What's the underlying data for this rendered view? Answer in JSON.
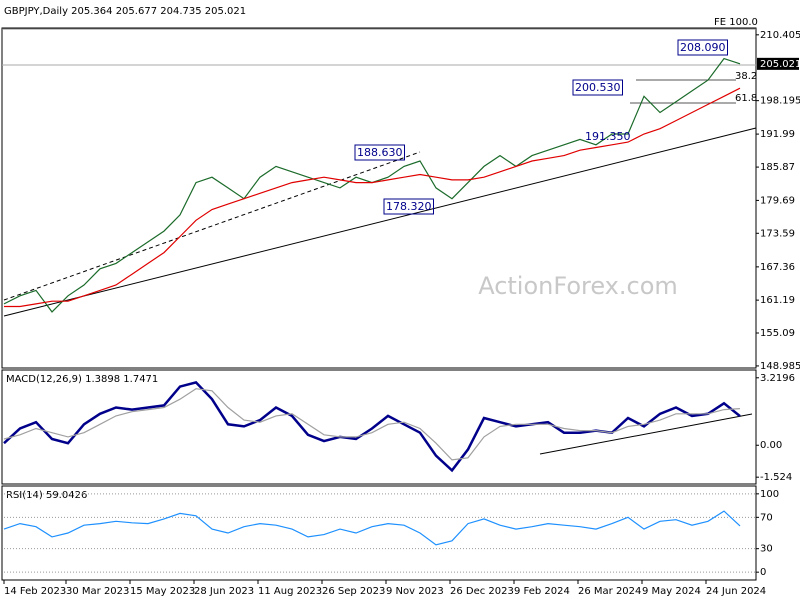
{
  "chart_data": [
    {
      "type": "line",
      "title": "GBPJPY,Daily  205.364 205.677 204.735 205.021",
      "x": [
        0,
        8,
        16,
        24,
        32,
        40,
        48,
        56,
        64,
        72,
        80,
        88,
        96,
        104,
        112,
        120,
        128,
        136,
        144,
        152,
        160,
        168,
        176,
        184,
        192,
        200,
        208,
        216,
        224,
        232,
        240,
        248,
        256,
        264,
        272,
        280,
        288,
        296,
        304,
        312,
        320,
        328,
        336,
        344,
        352,
        360,
        368
      ],
      "xlim": [
        0,
        376
      ],
      "ylim": [
        148.6,
        211.3
      ],
      "yticks": [
        148.985,
        155.09,
        161.19,
        167.36,
        173.59,
        179.69,
        185.87,
        191.99,
        198.195,
        210.405
      ],
      "last_price": 205.021,
      "series": [
        {
          "color": "#1b6b2a",
          "values": [
            160.5,
            162,
            163,
            159,
            162,
            164,
            167,
            168,
            170,
            172,
            174,
            177,
            183,
            184,
            182,
            180,
            184,
            186,
            185,
            184,
            183,
            182,
            184,
            183,
            184,
            186,
            187,
            182,
            180,
            183,
            186,
            188,
            186,
            188,
            189,
            190,
            191,
            190,
            192,
            192,
            199,
            196,
            198,
            200,
            202,
            206,
            205.021
          ]
        },
        {
          "color": "#e00000",
          "values": [
            160,
            160,
            160.5,
            161,
            161,
            162,
            163,
            164,
            166,
            168,
            170,
            173,
            176,
            178,
            179,
            180,
            181,
            182,
            183,
            183.5,
            184,
            183.5,
            183,
            183,
            183.5,
            184,
            184.5,
            184,
            183.5,
            183.5,
            184,
            185,
            186,
            187,
            187.5,
            188,
            189,
            189.5,
            190,
            190.5,
            192,
            193,
            194.5,
            196,
            197.5,
            199,
            200.5
          ]
        }
      ],
      "annotations": [
        "208.090",
        "200.530",
        "188.630",
        "178.320",
        "191.350",
        "FE 100.0",
        "38.2",
        "61.8"
      ],
      "watermark": "ActionForex.com"
    },
    {
      "type": "line",
      "title": "MACD(12,26,9) 1.3898 1.7471",
      "x": [
        0,
        8,
        16,
        24,
        32,
        40,
        48,
        56,
        64,
        72,
        80,
        88,
        96,
        104,
        112,
        120,
        128,
        136,
        144,
        152,
        160,
        168,
        176,
        184,
        192,
        200,
        208,
        216,
        224,
        232,
        240,
        248,
        256,
        264,
        272,
        280,
        288,
        296,
        304,
        312,
        320,
        328,
        336,
        344,
        352,
        360,
        368
      ],
      "xlim": [
        0,
        376
      ],
      "ylim": [
        -1.754,
        3.496
      ],
      "yticks": [
        -1.524,
        {
          "value": 0,
          "label": "0.00"
        },
        3.2196
      ],
      "series": [
        {
          "color": "#00008b",
          "values": [
            0.1,
            0.8,
            1.1,
            0.3,
            0.1,
            1.0,
            1.5,
            1.8,
            1.7,
            1.8,
            1.9,
            2.8,
            3.0,
            2.2,
            1.0,
            0.9,
            1.2,
            1.8,
            1.4,
            0.5,
            0.2,
            0.4,
            0.3,
            0.8,
            1.4,
            1.0,
            0.6,
            -0.5,
            -1.2,
            -0.2,
            1.3,
            1.1,
            0.9,
            1.0,
            1.1,
            0.6,
            0.6,
            0.7,
            0.6,
            1.3,
            0.9,
            1.5,
            1.8,
            1.4,
            1.5,
            2.0,
            1.3898
          ]
        },
        {
          "color": "#a0a0a0",
          "values": [
            0.3,
            0.5,
            0.8,
            0.6,
            0.4,
            0.6,
            1.0,
            1.4,
            1.6,
            1.7,
            1.8,
            2.2,
            2.7,
            2.6,
            1.8,
            1.2,
            1.1,
            1.4,
            1.5,
            1.0,
            0.5,
            0.4,
            0.4,
            0.6,
            1.0,
            1.1,
            0.8,
            0.1,
            -0.7,
            -0.6,
            0.4,
            0.9,
            1.0,
            1.0,
            1.0,
            0.8,
            0.7,
            0.7,
            0.6,
            0.9,
            1.0,
            1.2,
            1.5,
            1.5,
            1.5,
            1.7,
            1.7471
          ]
        }
      ]
    },
    {
      "type": "line",
      "title": "RSI(14) 59.0426",
      "x": [
        0,
        8,
        16,
        24,
        32,
        40,
        48,
        56,
        64,
        72,
        80,
        88,
        96,
        104,
        112,
        120,
        128,
        136,
        144,
        152,
        160,
        168,
        176,
        184,
        192,
        200,
        208,
        216,
        224,
        232,
        240,
        248,
        256,
        264,
        272,
        280,
        288,
        296,
        304,
        312,
        320,
        328,
        336,
        344,
        352,
        360,
        368
      ],
      "xlim": [
        0,
        376
      ],
      "ylim": [
        -10,
        110
      ],
      "yticks": [
        0,
        30,
        70,
        100
      ],
      "grid": true,
      "xticks": [
        {
          "value": 0,
          "label": "14 Feb 2023"
        },
        {
          "value": 31,
          "label": "30 Mar 2023"
        },
        {
          "value": 63,
          "label": "15 May 2023"
        },
        {
          "value": 95,
          "label": "28 Jun 2023"
        },
        {
          "value": 127,
          "label": "11 Aug 2023"
        },
        {
          "value": 159,
          "label": "26 Sep 2023"
        },
        {
          "value": 191,
          "label": "9 Nov 2023"
        },
        {
          "value": 223,
          "label": "26 Dec 2023"
        },
        {
          "value": 255,
          "label": "9 Feb 2024"
        },
        {
          "value": 287,
          "label": "26 Mar 2024"
        },
        {
          "value": 319,
          "label": "9 May 2024"
        },
        {
          "value": 351,
          "label": "24 Jun 2024"
        }
      ],
      "series": [
        {
          "color": "#1e90ff",
          "values": [
            55,
            62,
            58,
            45,
            50,
            60,
            62,
            65,
            63,
            62,
            68,
            75,
            72,
            55,
            50,
            58,
            62,
            60,
            55,
            45,
            48,
            55,
            50,
            58,
            62,
            60,
            50,
            35,
            40,
            62,
            68,
            60,
            55,
            58,
            62,
            60,
            58,
            55,
            62,
            70,
            55,
            65,
            67,
            60,
            65,
            78,
            59.0426
          ]
        }
      ]
    }
  ]
}
